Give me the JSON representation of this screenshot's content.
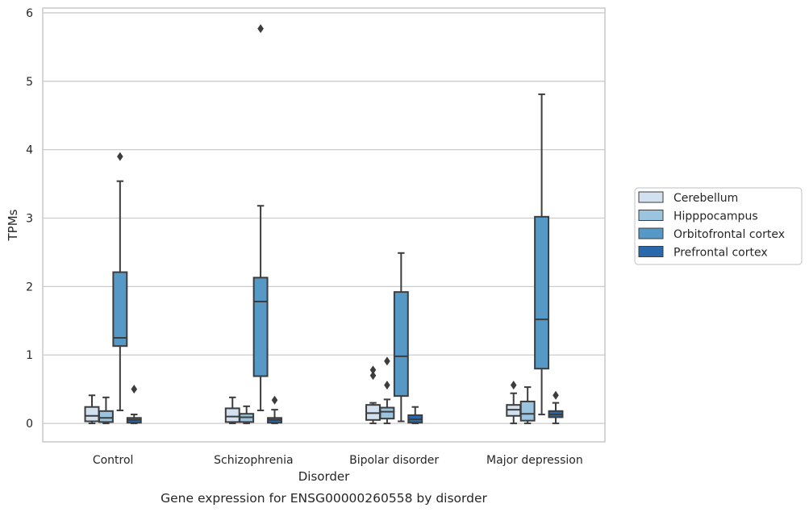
{
  "caption": "Gene expression for ENSG00000260558 by disorder",
  "chart_data": {
    "type": "box",
    "xlabel": "Disorder",
    "ylabel": "TPMs",
    "ylim": [
      -0.27,
      6.07
    ],
    "yticks": [
      "0",
      "1",
      "2",
      "3",
      "4",
      "5",
      "6"
    ],
    "ytick_values": [
      0,
      1,
      2,
      3,
      4,
      5,
      6
    ],
    "grid": true,
    "legend_position": "right",
    "categories": [
      "Control",
      "Schizophrenia",
      "Bipolar disorder",
      "Major depression"
    ],
    "series": [
      {
        "name": "Cerebellum",
        "color": "#d1e1f0",
        "boxes": [
          {
            "whislo": 0.0,
            "q1": 0.03,
            "med": 0.11,
            "q3": 0.24,
            "whishi": 0.41,
            "fliers": []
          },
          {
            "whislo": 0.0,
            "q1": 0.02,
            "med": 0.1,
            "q3": 0.22,
            "whishi": 0.38,
            "fliers": []
          },
          {
            "whislo": 0.0,
            "q1": 0.05,
            "med": 0.15,
            "q3": 0.27,
            "whishi": 0.3,
            "fliers": [
              0.7,
              0.78
            ]
          },
          {
            "whislo": 0.0,
            "q1": 0.11,
            "med": 0.2,
            "q3": 0.27,
            "whishi": 0.44,
            "fliers": [
              0.56
            ]
          }
        ]
      },
      {
        "name": "Hipppocampus",
        "color": "#9ac4df",
        "boxes": [
          {
            "whislo": 0.0,
            "q1": 0.02,
            "med": 0.08,
            "q3": 0.18,
            "whishi": 0.38,
            "fliers": []
          },
          {
            "whislo": 0.0,
            "q1": 0.02,
            "med": 0.09,
            "q3": 0.14,
            "whishi": 0.25,
            "fliers": []
          },
          {
            "whislo": 0.0,
            "q1": 0.07,
            "med": 0.17,
            "q3": 0.23,
            "whishi": 0.35,
            "fliers": [
              0.56,
              0.91
            ]
          },
          {
            "whislo": 0.0,
            "q1": 0.04,
            "med": 0.14,
            "q3": 0.32,
            "whishi": 0.53,
            "fliers": []
          }
        ]
      },
      {
        "name": "Orbitofrontal cortex",
        "color": "#5799c6",
        "boxes": [
          {
            "whislo": 0.19,
            "q1": 1.13,
            "med": 1.25,
            "q3": 2.21,
            "whishi": 3.54,
            "fliers": [
              3.9
            ]
          },
          {
            "whislo": 0.19,
            "q1": 0.69,
            "med": 1.78,
            "q3": 2.13,
            "whishi": 3.18,
            "fliers": [
              5.77
            ]
          },
          {
            "whislo": 0.03,
            "q1": 0.4,
            "med": 0.98,
            "q3": 1.92,
            "whishi": 2.49,
            "fliers": []
          },
          {
            "whislo": 0.13,
            "q1": 0.8,
            "med": 1.52,
            "q3": 3.02,
            "whishi": 4.81,
            "fliers": []
          }
        ]
      },
      {
        "name": "Prefrontal cortex",
        "color": "#2a69a9",
        "boxes": [
          {
            "whislo": 0.0,
            "q1": 0.01,
            "med": 0.05,
            "q3": 0.08,
            "whishi": 0.13,
            "fliers": [
              0.5
            ]
          },
          {
            "whislo": 0.0,
            "q1": 0.01,
            "med": 0.05,
            "q3": 0.08,
            "whishi": 0.2,
            "fliers": [
              0.34
            ]
          },
          {
            "whislo": 0.0,
            "q1": 0.01,
            "med": 0.06,
            "q3": 0.12,
            "whishi": 0.24,
            "fliers": []
          },
          {
            "whislo": 0.0,
            "q1": 0.09,
            "med": 0.13,
            "q3": 0.18,
            "whishi": 0.3,
            "fliers": [
              0.41
            ]
          }
        ]
      }
    ]
  }
}
